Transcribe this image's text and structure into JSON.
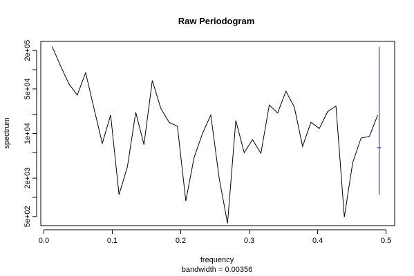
{
  "chart_data": {
    "type": "line",
    "title": "Raw Periodogram",
    "xlabel": "frequency",
    "subtitle": "bandwidth = 0.00356",
    "ylabel": "spectrum",
    "log_y": true,
    "xlim": [
      -0.0045,
      0.5125
    ],
    "ylim": [
      360,
      278000
    ],
    "x_ticks": [
      0.0,
      0.1,
      0.2,
      0.3,
      0.4,
      0.5
    ],
    "x_tick_labels": [
      "0.0",
      "0.1",
      "0.2",
      "0.3",
      "0.4",
      "0.5"
    ],
    "y_ticks_labeled": [
      500,
      2000,
      10000,
      50000,
      200000
    ],
    "y_tick_labels": [
      "5e+02",
      "2e+03",
      "1e+04",
      "5e+04",
      "2e+05"
    ],
    "y_ticks_minor": [
      1000,
      5000,
      20000,
      100000
    ],
    "series": [
      {
        "color": "#000000",
        "x": [
          0.0122,
          0.0244,
          0.0366,
          0.0488,
          0.061,
          0.0732,
          0.0854,
          0.0976,
          0.1098,
          0.122,
          0.1342,
          0.1463,
          0.1585,
          0.1707,
          0.1829,
          0.1951,
          0.2073,
          0.2195,
          0.2317,
          0.2439,
          0.2561,
          0.2683,
          0.2805,
          0.2927,
          0.3049,
          0.3171,
          0.3293,
          0.3415,
          0.3537,
          0.3659,
          0.378,
          0.3902,
          0.4024,
          0.4146,
          0.4268,
          0.439,
          0.4512,
          0.4634,
          0.4756,
          0.4878
        ],
        "y": [
          230000,
          115000,
          60000,
          40000,
          90000,
          25000,
          7000,
          19500,
          1100,
          3000,
          21500,
          6700,
          68000,
          25000,
          15000,
          13000,
          880,
          4200,
          10000,
          19500,
          2000,
          390,
          16000,
          5000,
          8000,
          4900,
          28000,
          21000,
          46000,
          26000,
          6300,
          15000,
          12000,
          22000,
          27000,
          490,
          3500,
          8500,
          9000,
          19500
        ]
      }
    ],
    "ci_bar": {
      "color": "#1b1bcc",
      "x": 0.4898,
      "upper": 230000,
      "lower": 1100,
      "center": 6000
    }
  }
}
